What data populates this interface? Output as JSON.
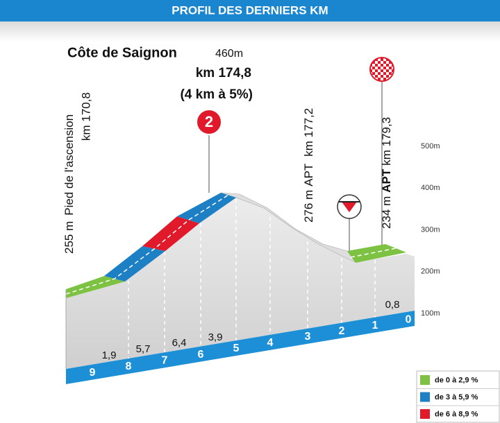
{
  "header": {
    "title": "PROFIL DES DERNIERS KM"
  },
  "climb": {
    "name": "Côte de Saignon",
    "altitude": "460m",
    "km": "km 174,8",
    "details": "(4 km à 5%)",
    "category": "2"
  },
  "markers": [
    {
      "altitude": "255 m",
      "label": "Pied de l'ascension",
      "km": "km 170,8"
    },
    {
      "altitude": "276 m",
      "label": "APT",
      "km": "km 177,2"
    },
    {
      "altitude": "234 m",
      "label": "APT",
      "km": "km 179,3"
    }
  ],
  "altitude_scale": [
    "500m",
    "400m",
    "300m",
    "200m",
    "100m"
  ],
  "km_markers": [
    "9",
    "8",
    "7",
    "6",
    "5",
    "4",
    "3",
    "2",
    "1",
    "0"
  ],
  "gradients": [
    "1,9",
    "5,7",
    "6,4",
    "3,9",
    "0,8"
  ],
  "legend": [
    {
      "label": "de 0 à 2,9 %",
      "color": "#7dc242"
    },
    {
      "label": "de 3 à 5,9 %",
      "color": "#1d7fc4"
    },
    {
      "label": "de 6 à 8,9 %",
      "color": "#e01a2b"
    }
  ]
}
